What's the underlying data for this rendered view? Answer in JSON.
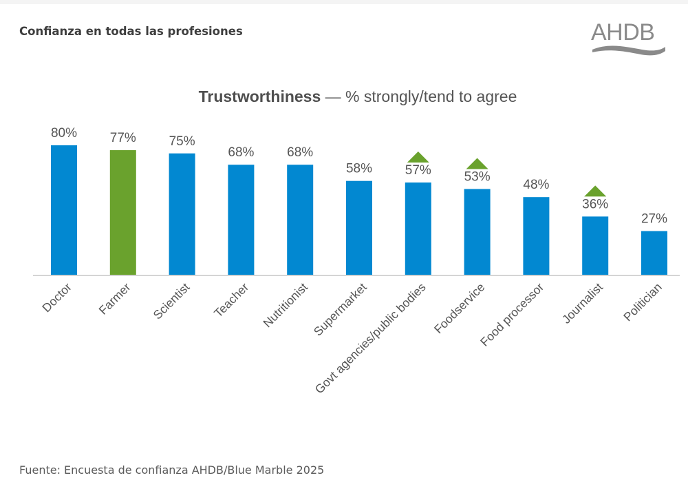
{
  "page": {
    "heading": "Confianza en todas las profesiones",
    "logo_text": "AHDB",
    "source": "Fuente: Encuesta de confianza AHDB/Blue Marble 2025"
  },
  "chart_data": {
    "type": "bar",
    "title_bold": "Trustworthiness",
    "title_rest": " — % strongly/tend to agree",
    "title": "Trustworthiness — % strongly/tend to agree",
    "xlabel": "",
    "ylabel": "",
    "ylim": [
      0,
      100
    ],
    "grid": false,
    "legend": "none",
    "categories": [
      "Doctor",
      "Farmer",
      "Scientist",
      "Teacher",
      "Nutritionist",
      "Supermarket",
      "Govt agencies/public bodies",
      "Foodservice",
      "Food processor",
      "Journalist",
      "Politician"
    ],
    "values": [
      80,
      77,
      75,
      68,
      68,
      58,
      57,
      53,
      48,
      36,
      27
    ],
    "value_labels": [
      "80%",
      "77%",
      "75%",
      "68%",
      "68%",
      "58%",
      "57%",
      "53%",
      "48%",
      "36%",
      "27%"
    ],
    "highlight": [
      false,
      true,
      false,
      false,
      false,
      false,
      false,
      false,
      false,
      false,
      false
    ],
    "increase_marker": [
      false,
      false,
      false,
      false,
      false,
      false,
      true,
      true,
      false,
      true,
      false
    ],
    "colors": {
      "default_bar": "#0288d1",
      "highlight_bar": "#6aa22d",
      "increase_marker": "#6aa22d",
      "axis": "#d4d4d4"
    }
  }
}
